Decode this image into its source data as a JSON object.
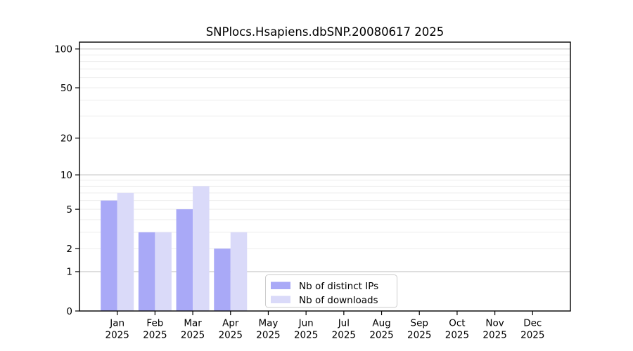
{
  "title": "SNPlocs.Hsapiens.dbSNP.20080617 2025",
  "chart_data": {
    "type": "bar",
    "title": "SNPlocs.Hsapiens.dbSNP.20080617 2025",
    "y_scale": "log10(1+x)",
    "categories": [
      "Jan",
      "Feb",
      "Mar",
      "Apr",
      "May",
      "Jun",
      "Jul",
      "Aug",
      "Sep",
      "Oct",
      "Nov",
      "Dec"
    ],
    "category_year": "2025",
    "series": [
      {
        "name": "Nb of distinct IPs",
        "color": "#a9a9f7",
        "values": [
          6,
          3,
          5,
          2,
          0,
          0,
          0,
          0,
          0,
          0,
          0,
          0
        ]
      },
      {
        "name": "Nb of downloads",
        "color": "#dadaf9",
        "values": [
          7,
          3,
          8,
          3,
          0,
          0,
          0,
          0,
          0,
          0,
          0,
          0
        ]
      }
    ],
    "y_ticks": [
      0,
      1,
      2,
      5,
      10,
      20,
      50,
      100
    ],
    "ylim": [
      0,
      113
    ],
    "grid": {
      "major_values": [
        1,
        10,
        100
      ],
      "minor_values": [
        2,
        3,
        4,
        5,
        6,
        7,
        8,
        9,
        20,
        30,
        40,
        50,
        60,
        70,
        80,
        90
      ],
      "major_color": "#c6c6c6",
      "minor_color": "#ededed"
    },
    "legend": {
      "position": "lower center",
      "background": "#ffffff",
      "border_color": "#cccccc"
    },
    "axis_color": "#000000"
  }
}
